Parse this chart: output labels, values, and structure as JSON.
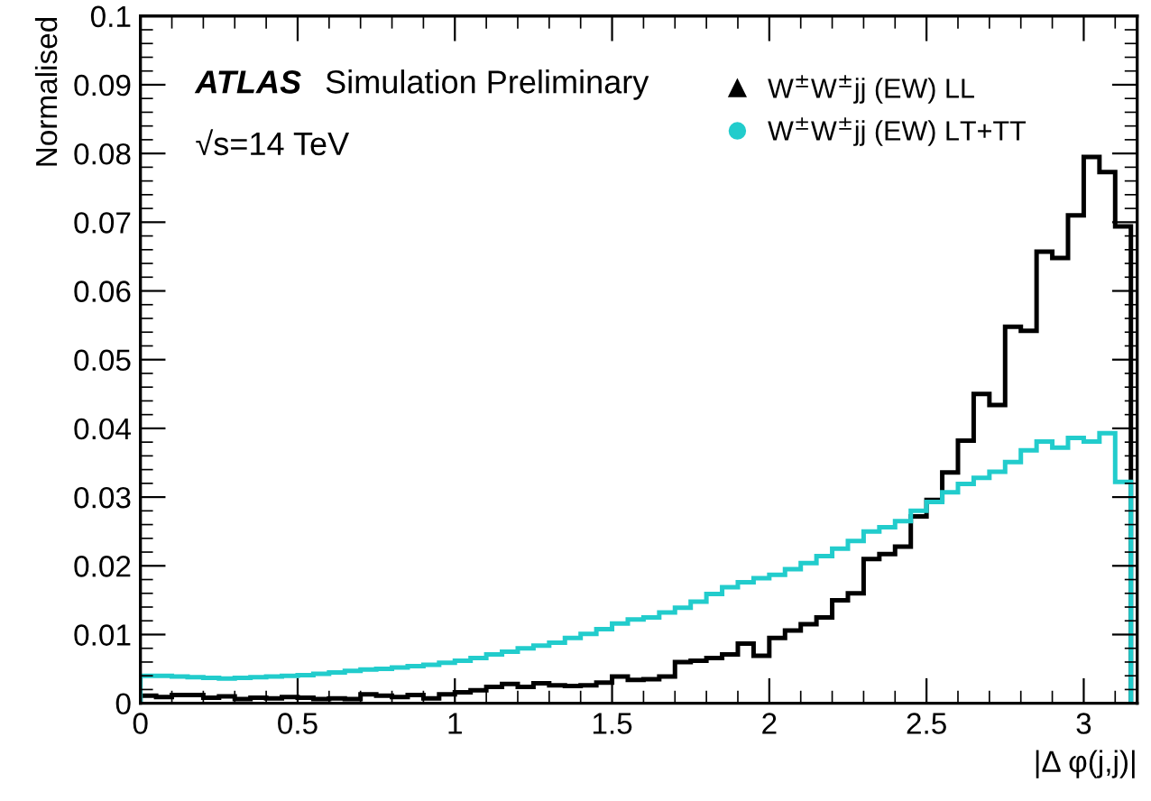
{
  "chart_data": {
    "type": "histogram",
    "xlabel": "|Δ φ(j,j)|",
    "ylabel": "Normalised",
    "annotations": [
      "ATLAS",
      "Simulation Preliminary",
      "√s=14 TeV"
    ],
    "bins": [
      0,
      0.05,
      0.1,
      0.15,
      0.2,
      0.25,
      0.3,
      0.35,
      0.4,
      0.45,
      0.5,
      0.55,
      0.6,
      0.65,
      0.7,
      0.75,
      0.8,
      0.85,
      0.9,
      0.95,
      1,
      1.05,
      1.1,
      1.15,
      1.2,
      1.25,
      1.3,
      1.35,
      1.4,
      1.45,
      1.5,
      1.55,
      1.6,
      1.65,
      1.7,
      1.75,
      1.8,
      1.85,
      1.9,
      1.95,
      2,
      2.05,
      2.1,
      2.15,
      2.2,
      2.25,
      2.3,
      2.35,
      2.4,
      2.45,
      2.5,
      2.55,
      2.6,
      2.65,
      2.7,
      2.75,
      2.8,
      2.85,
      2.9,
      2.95,
      3,
      3.05,
      3.1,
      3.15
    ],
    "series": [
      {
        "name": "W$^{±}$W$^{±}$jj (EW) LL",
        "color": "#000000",
        "marker": "triangle",
        "values": [
          0.0011,
          0.0009,
          0.0012,
          0.0012,
          0.0008,
          0.001,
          0.0006,
          0.0008,
          0.0007,
          0.0009,
          0.0008,
          0.0006,
          0.0007,
          0.0006,
          0.0013,
          0.0011,
          0.0009,
          0.0012,
          0.0007,
          0.0013,
          0.0016,
          0.0019,
          0.0024,
          0.0028,
          0.0024,
          0.0029,
          0.0026,
          0.0025,
          0.0026,
          0.003,
          0.0039,
          0.0034,
          0.0035,
          0.0039,
          0.006,
          0.0062,
          0.0066,
          0.0071,
          0.0087,
          0.0069,
          0.0095,
          0.0106,
          0.0115,
          0.0125,
          0.015,
          0.016,
          0.021,
          0.0217,
          0.0228,
          0.0272,
          0.0296,
          0.0336,
          0.0382,
          0.045,
          0.0434,
          0.0548,
          0.0542,
          0.0657,
          0.0648,
          0.071,
          0.0795,
          0.0773,
          0.0694
        ]
      },
      {
        "name": "W$^{±}$W$^{±}$jj (EW) LT+TT",
        "color": "#22cccc",
        "marker": "circle",
        "values": [
          0.004,
          0.004,
          0.0039,
          0.0038,
          0.0037,
          0.0036,
          0.0037,
          0.0038,
          0.0039,
          0.004,
          0.0041,
          0.0043,
          0.0045,
          0.0047,
          0.0049,
          0.005,
          0.0052,
          0.0054,
          0.0056,
          0.0059,
          0.0062,
          0.0066,
          0.0071,
          0.0075,
          0.008,
          0.0084,
          0.0088,
          0.0095,
          0.0101,
          0.0108,
          0.0116,
          0.0122,
          0.0125,
          0.0132,
          0.0139,
          0.0148,
          0.0159,
          0.0169,
          0.0176,
          0.0182,
          0.0187,
          0.0195,
          0.0204,
          0.0214,
          0.0225,
          0.0236,
          0.025,
          0.0256,
          0.0265,
          0.028,
          0.0293,
          0.0307,
          0.0319,
          0.0328,
          0.0337,
          0.0351,
          0.0368,
          0.0381,
          0.0372,
          0.0386,
          0.0381,
          0.0393,
          0.0322
        ]
      }
    ],
    "xlim": [
      0,
      3.17
    ],
    "xticks": [
      0,
      0.5,
      1,
      1.5,
      2,
      2.5,
      3
    ],
    "ylim": [
      0,
      0.1
    ],
    "yticks": [
      0,
      0.01,
      0.02,
      0.03,
      0.04,
      0.05,
      0.06,
      0.07,
      0.08,
      0.09,
      0.1
    ],
    "legend": "top right"
  }
}
